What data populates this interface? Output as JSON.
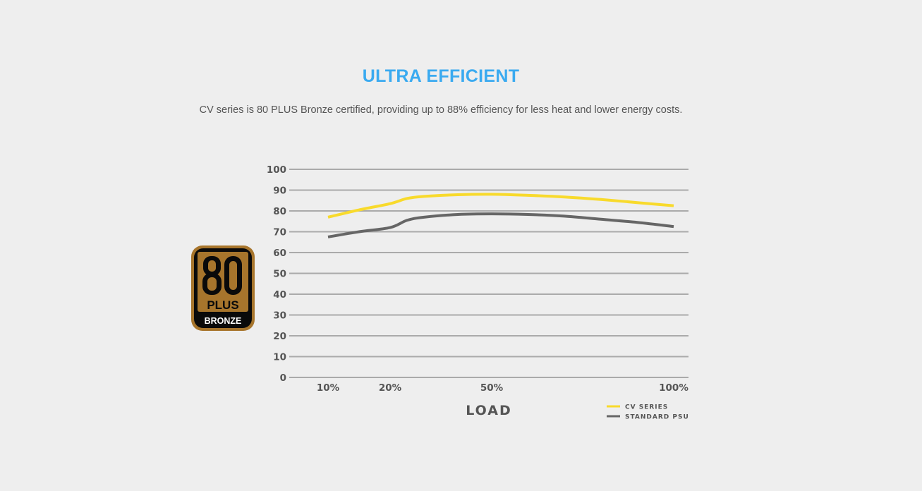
{
  "header": {
    "title": "ULTRA EFFICIENT",
    "subtitle": "CV series is 80 PLUS Bronze certified, providing up to 88% efficiency for less heat and lower energy costs."
  },
  "badge": {
    "number": "80",
    "plus": "PLUS",
    "tier": "BRONZE",
    "colors": {
      "gold": "#a7752c",
      "black": "#0a0a0a"
    }
  },
  "chart_data": {
    "type": "line",
    "title": "",
    "xlabel": "LOAD",
    "ylabel": "",
    "ylim": [
      0,
      100
    ],
    "y_ticks": [
      "0",
      "10",
      "20",
      "30",
      "40",
      "50",
      "60",
      "70",
      "80",
      "90",
      "100"
    ],
    "x_ticks": [
      {
        "value": 10,
        "label": "10%"
      },
      {
        "value": 20,
        "label": "20%"
      },
      {
        "value": 50,
        "label": "50%"
      },
      {
        "value": 100,
        "label": "100%"
      }
    ],
    "grid": true,
    "legend_position": "bottom-right",
    "x": [
      10,
      15,
      20,
      25,
      30,
      40,
      50,
      60,
      70,
      80,
      90,
      100
    ],
    "series": [
      {
        "name": "CV SERIES",
        "color": "#f8da2c",
        "values": [
          77,
          80.5,
          83.5,
          86,
          87,
          87.8,
          88,
          87.5,
          86.7,
          85.5,
          84,
          82.5
        ]
      },
      {
        "name": "STANDARD PSU",
        "color": "#666666",
        "values": [
          67.5,
          70,
          72,
          75.5,
          77,
          78.3,
          78.6,
          78.3,
          77.5,
          76,
          74.5,
          72.5
        ]
      }
    ]
  }
}
